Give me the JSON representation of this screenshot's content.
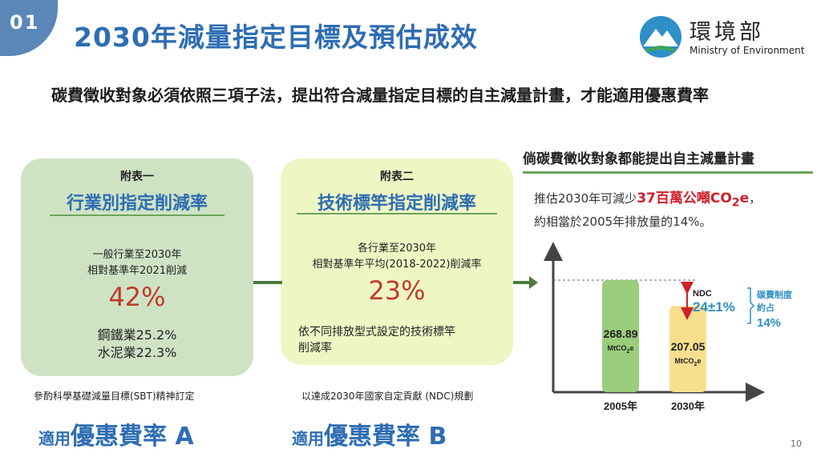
{
  "slide": {
    "number": "01",
    "title": "2030年減量指定目標及預估成效",
    "page": "10"
  },
  "logo": {
    "name_cn": "環境部",
    "name_en": "Ministry of Environment"
  },
  "intro": "碳費徵收對象必須依照三項子法，提出符合減量指定目標的自主減量計畫，才能適用優惠費率",
  "box_a": {
    "caption": "附表一",
    "heading": "行業別指定削減率",
    "line1": "一般行業至2030年",
    "line2": "相對基準年2021削減",
    "percent": "42%",
    "sector1": "鋼鐵業25.2%",
    "sector2": "水泥業22.3%",
    "note": "參酌科學基礎減量目標(SBT)精神訂定",
    "apply_small": "適用",
    "apply_large": "優惠費率 A"
  },
  "box_b": {
    "caption": "附表二",
    "heading": "技術標竿指定削減率",
    "line1": "各行業至2030年",
    "line2": "相對基準年平均(2018-2022)削減率",
    "percent": "23%",
    "desc1": "依不同排放型式設定的技術標竿",
    "desc2": "削減率",
    "note": "以達成2030年國家自定貢獻 (NDC)規劃",
    "apply_small": "適用",
    "apply_large": "優惠費率 B"
  },
  "right": {
    "heading": "倘碳費徵收對象都能提出自主減量計畫",
    "est_prefix": "推估2030年可減少",
    "est_red_a": "37百萬公噸CO",
    "est_red_sub": "2",
    "est_red_b": "e",
    "est_suffix": "，",
    "est_line2": "約相當於2005年排放量的14%。"
  },
  "chart_data": {
    "type": "bar",
    "categories": [
      "2005年",
      "2030年"
    ],
    "values": [
      268.89,
      207.05
    ],
    "value_labels": [
      "268.89",
      "207.05"
    ],
    "unit_main": "MtCO",
    "unit_sub": "2",
    "unit_tail": "e",
    "ylim": [
      0,
      300
    ],
    "colors": {
      "2005年": "#9acd7c",
      "2030年": "#f7df8e"
    },
    "annotation_ndc_label": "NDC",
    "annotation_ndc_value": "24±1%",
    "annotation_fee_label1": "碳費制度",
    "annotation_fee_label2": "約占",
    "annotation_fee_value": "14%"
  },
  "colors": {
    "accent": "#2e6db3",
    "green": "#6aa55a",
    "red": "#d0202a",
    "arrow": "#4e7a3e"
  }
}
